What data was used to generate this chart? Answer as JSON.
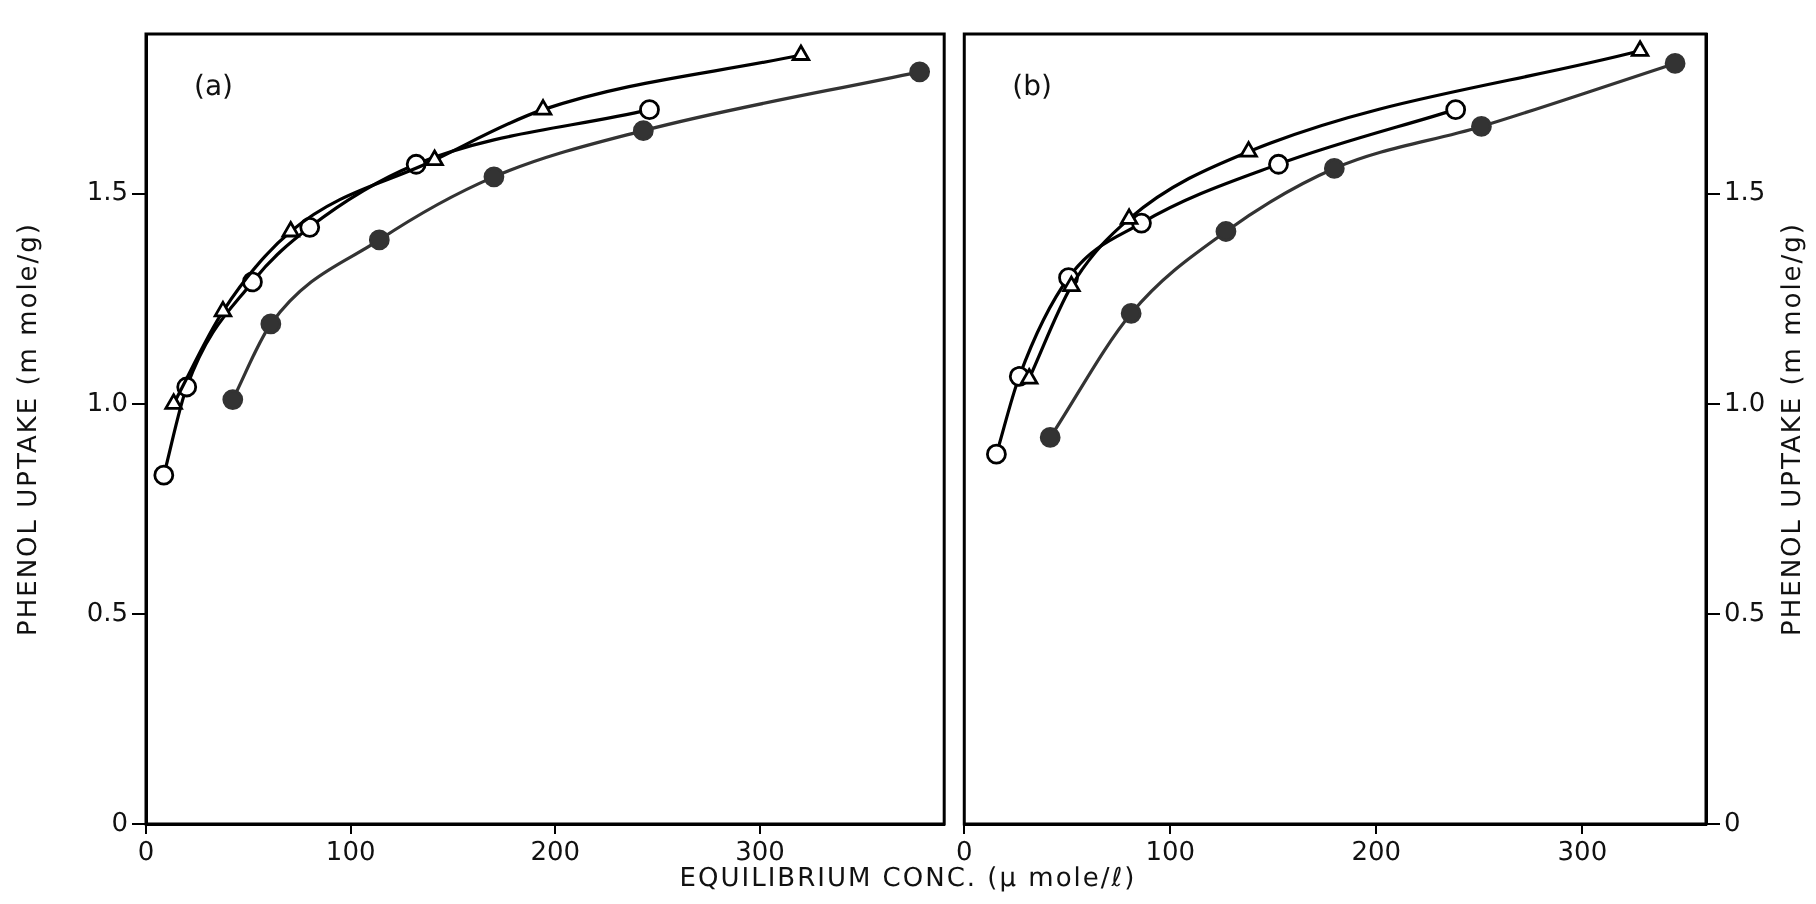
{
  "chart_data": [
    {
      "type": "line",
      "xlabel": "EQUILIBRIUM CONC. (μ mole/ℓ)",
      "ylabel": "PHENOL UPTAKE (m mole/g)",
      "annotations": [
        "(a)"
      ],
      "xlim": [
        0,
        390
      ],
      "xticks": [
        0,
        100,
        200,
        300
      ],
      "ylim": [
        0,
        1.88
      ],
      "yticks": [
        0,
        {
          "value": 0.5,
          "label": "0.5"
        },
        {
          "value": 1,
          "label": "1.0"
        },
        {
          "value": 1.5,
          "label": "1.5"
        }
      ],
      "grid": false,
      "legend": false,
      "line_style": "solid",
      "series": [
        {
          "color": "#000000",
          "marker": "triangle",
          "x": [
            13.5,
            37.6,
            70.7,
            141,
            194,
            320
          ],
          "values": [
            1.0,
            1.22,
            1.41,
            1.58,
            1.7,
            1.83
          ]
        },
        {
          "color": "#000000",
          "marker": "circle",
          "x": [
            8.7,
            19.9,
            52,
            80,
            132,
            246
          ],
          "values": [
            0.83,
            1.04,
            1.29,
            1.42,
            1.57,
            1.7
          ]
        },
        {
          "color": "#333333",
          "marker": "circle",
          "x": [
            42.4,
            61,
            114,
            170,
            243,
            378
          ],
          "values": [
            1.01,
            1.19,
            1.39,
            1.54,
            1.65,
            1.79
          ]
        }
      ]
    },
    {
      "type": "line",
      "y2label": "PHENOL UPTAKE (m mole/g)",
      "annotations": [
        "(b)"
      ],
      "xlim": [
        0,
        360
      ],
      "xticks": [
        0,
        100,
        200,
        300
      ],
      "y2lim": [
        0,
        1.88
      ],
      "y2ticks": [
        0,
        {
          "value": 0.5,
          "label": "0.5"
        },
        {
          "value": 1,
          "label": "1.0"
        },
        {
          "value": 1.5,
          "label": "1.5"
        }
      ],
      "grid": false,
      "legend": false,
      "line_style": "solid",
      "series": [
        {
          "color": "#000000",
          "axis": "y2",
          "marker": "triangle",
          "x": [
            31.5,
            52,
            80,
            138,
            328
          ],
          "values": [
            1.06,
            1.28,
            1.44,
            1.6,
            1.84
          ]
        },
        {
          "color": "#000000",
          "axis": "y2",
          "marker": "circle",
          "x": [
            15.6,
            26.7,
            50.6,
            86,
            152.5,
            238.5
          ],
          "values": [
            0.88,
            1.065,
            1.3,
            1.43,
            1.57,
            1.7
          ]
        },
        {
          "color": "#333333",
          "axis": "y2",
          "marker": "circle",
          "x": [
            41.7,
            81,
            127,
            179.6,
            251,
            345
          ],
          "values": [
            0.92,
            1.215,
            1.41,
            1.56,
            1.66,
            1.81
          ]
        }
      ]
    }
  ]
}
